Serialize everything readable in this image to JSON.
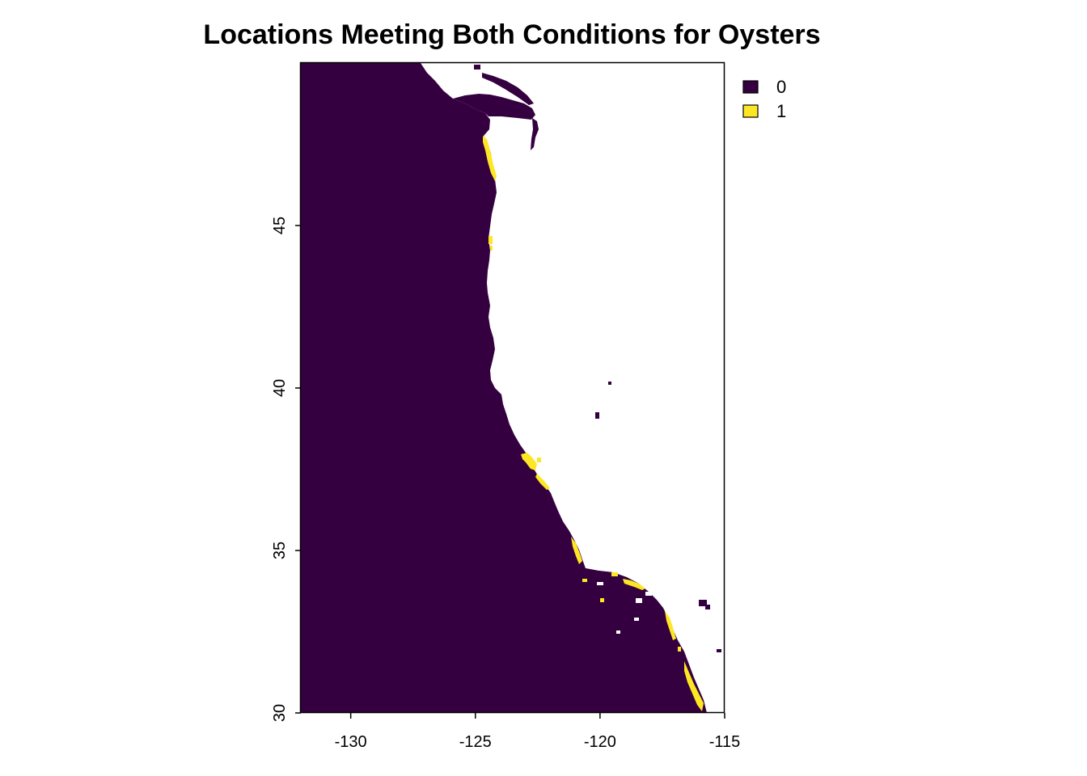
{
  "title": "Locations Meeting Both Conditions for Oysters",
  "colors": {
    "class_0": "#350040",
    "class_1": "#FDE725",
    "background": "#FFFFFF"
  },
  "legend": [
    {
      "value": "0",
      "color": "#350040"
    },
    {
      "value": "1",
      "color": "#FDE725"
    }
  ],
  "chart_data": {
    "type": "heatmap",
    "title": "Locations Meeting Both Conditions for Oysters",
    "xlabel": "",
    "ylabel": "",
    "xlim": [
      -132,
      -115
    ],
    "ylim": [
      30,
      50
    ],
    "x_ticks": [
      -130,
      -125,
      -120,
      -115
    ],
    "y_ticks": [
      30,
      35,
      40,
      45
    ],
    "x_tick_labels": [
      "-130",
      "-125",
      "-120",
      "-115"
    ],
    "y_tick_labels": [
      "30",
      "35",
      "40",
      "45"
    ],
    "classes": [
      "0",
      "1"
    ],
    "legend_position": "top-right",
    "grid": false
  }
}
